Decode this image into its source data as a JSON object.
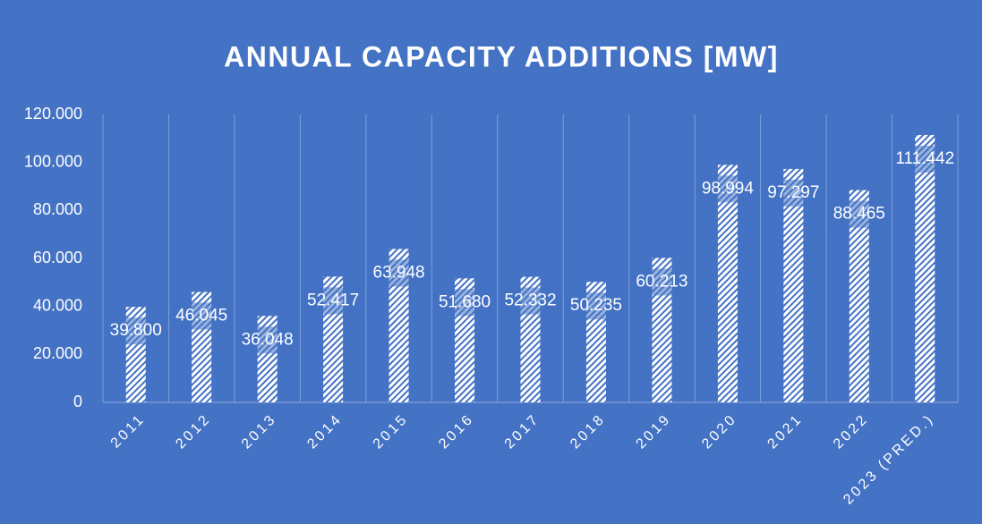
{
  "chart_data": {
    "type": "bar",
    "title": "ANNUAL CAPACITY ADDITIONS [MW]",
    "categories": [
      "2011",
      "2012",
      "2013",
      "2014",
      "2015",
      "2016",
      "2017",
      "2018",
      "2019",
      "2020",
      "2021",
      "2022",
      "2023 (PRED.)"
    ],
    "values": [
      39800,
      46045,
      36048,
      52417,
      63948,
      51680,
      52332,
      50235,
      60213,
      98994,
      97297,
      88465,
      111442
    ],
    "value_labels": [
      "39.800",
      "46.045",
      "36.048",
      "52.417",
      "63.948",
      "51.680",
      "52.332",
      "50.235",
      "60.213",
      "98.994",
      "97.297",
      "88.465",
      "111.442"
    ],
    "color": "#ffffff",
    "ylim": [
      0,
      120000
    ],
    "yticks": [
      0,
      {
        "value": 20000,
        "label": "20.000"
      },
      {
        "value": 40000,
        "label": "40.000"
      },
      {
        "value": 60000,
        "label": "60.000"
      },
      {
        "value": 80000,
        "label": "80.000"
      },
      {
        "value": 100000,
        "label": "100.000"
      },
      {
        "value": 120000,
        "label": "120.000"
      }
    ],
    "grid": true
  }
}
